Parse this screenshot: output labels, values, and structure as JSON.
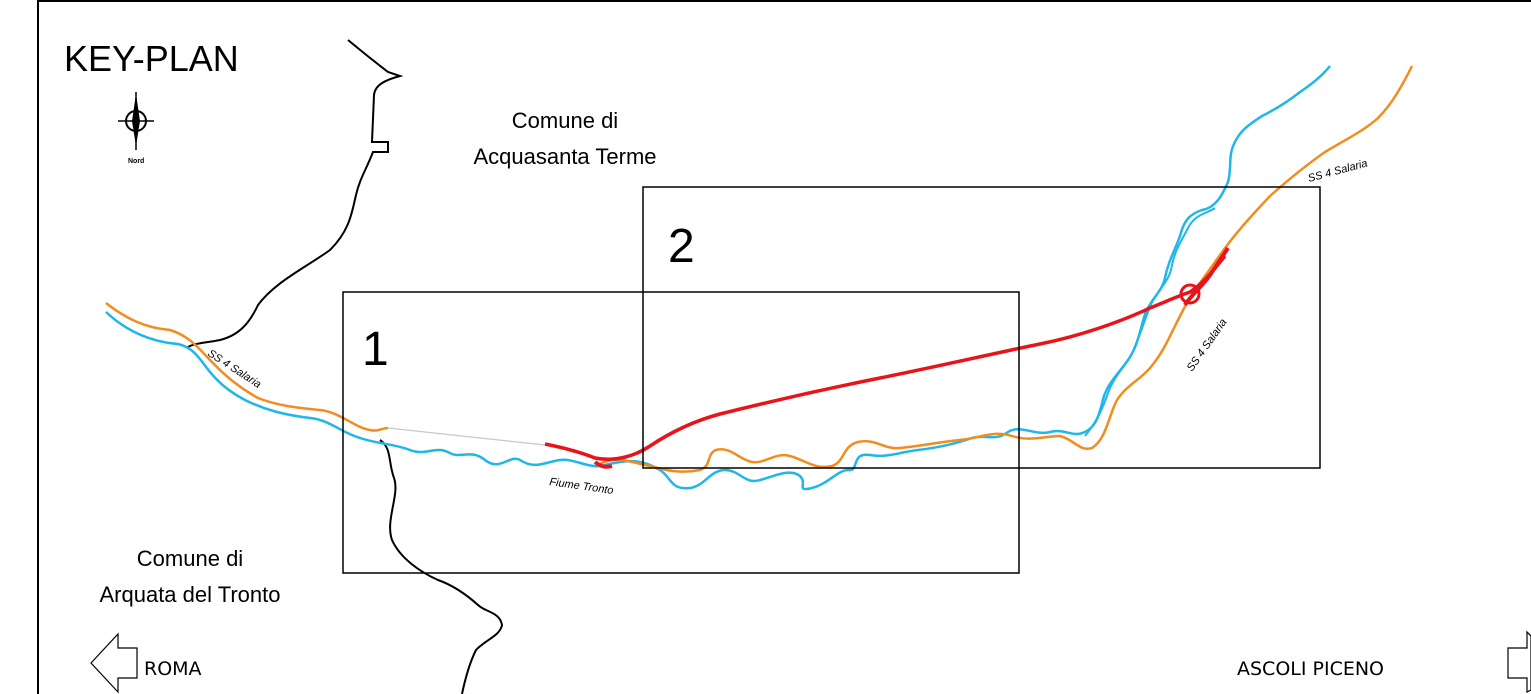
{
  "title": "KEY-PLAN",
  "north_label": "Nord",
  "municipalities": {
    "north": [
      "Comune di",
      "Acquasanta Terme"
    ],
    "south": [
      "Comune di",
      "Arquata del Tronto"
    ]
  },
  "road_labels": {
    "west": "SS 4 Salaria",
    "east_upper": "SS 4 Salaria",
    "east_lower": "SS 4 Salaria"
  },
  "river_label": "Fiume Tronto",
  "sheets": [
    {
      "number": "1"
    },
    {
      "number": "2"
    }
  ],
  "directions": {
    "left": "ROMA",
    "right": "ASCOLI PICENO"
  },
  "colors": {
    "river": "#1fb7e8",
    "road": "#f28c1e",
    "project": "#e8141c",
    "boundary": "#000000",
    "frame": "#000000"
  }
}
